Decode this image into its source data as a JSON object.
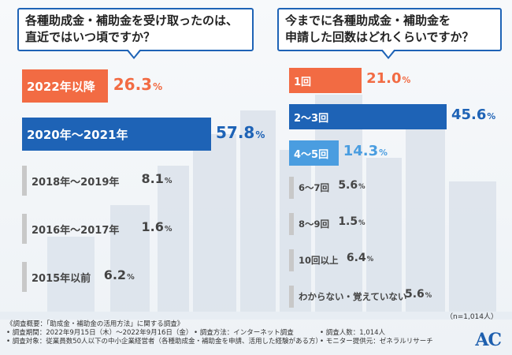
{
  "left_question": {
    "line1": "各種助成金・補助金を受け取ったのは、",
    "line2": "直近ではいつ頃ですか？"
  },
  "right_question": {
    "line1": "今までに各種助成金・補助金を",
    "line2": "申請した回数はどれくらいですか？"
  },
  "chart_data": [
    {
      "type": "bar",
      "orientation": "horizontal",
      "title": "各種助成金・補助金を受け取ったのは、直近ではいつ頃ですか？",
      "categories": [
        "2022年以降",
        "2020年〜2021年",
        "2018年〜2019年",
        "2016年〜2017年",
        "2015年以前"
      ],
      "values": [
        26.3,
        57.8,
        8.1,
        1.6,
        6.2
      ],
      "value_texts": [
        "26.3",
        "57.8",
        "8.1",
        "1.6",
        "6.2"
      ],
      "unit": "%",
      "colors": [
        "#f26b43",
        "#1e63b6",
        "#c8c8c8",
        "#c8c8c8",
        "#c8c8c8"
      ]
    },
    {
      "type": "bar",
      "orientation": "horizontal",
      "title": "今までに各種助成金・補助金を申請した回数はどれくらいですか？",
      "categories": [
        "1回",
        "2〜3回",
        "4〜5回",
        "6〜7回",
        "8〜9回",
        "10回以上",
        "わからない・覚えていない"
      ],
      "values": [
        21.0,
        45.6,
        14.3,
        5.6,
        1.5,
        6.4,
        5.6
      ],
      "value_texts": [
        "21.0",
        "45.6",
        "14.3",
        "5.6",
        "1.5",
        "6.4",
        "5.6"
      ],
      "unit": "%",
      "colors": [
        "#f26b43",
        "#1e63b6",
        "#4a9de0",
        "#c8c8c8",
        "#c8c8c8",
        "#c8c8c8",
        "#c8c8c8"
      ]
    }
  ],
  "sample_note": "（n=1,014人）",
  "footer": {
    "survey_title": "《調査概要：「助成金・補助金の活用方法」に関する調査》",
    "period": "• 調査期間：2022年9月15日（木）〜2022年9月16日（金）",
    "method": "• 調査方法：インターネット調査",
    "respondents": "• 調査人数：1,014人",
    "target": "• 調査対象：従業員数50人以下の中小企業経営者（各種助成金・補助金を申請、活用した経験がある方）",
    "monitor": "• モニター提供元：ゼネラルリサーチ"
  },
  "logo_text": "AC"
}
